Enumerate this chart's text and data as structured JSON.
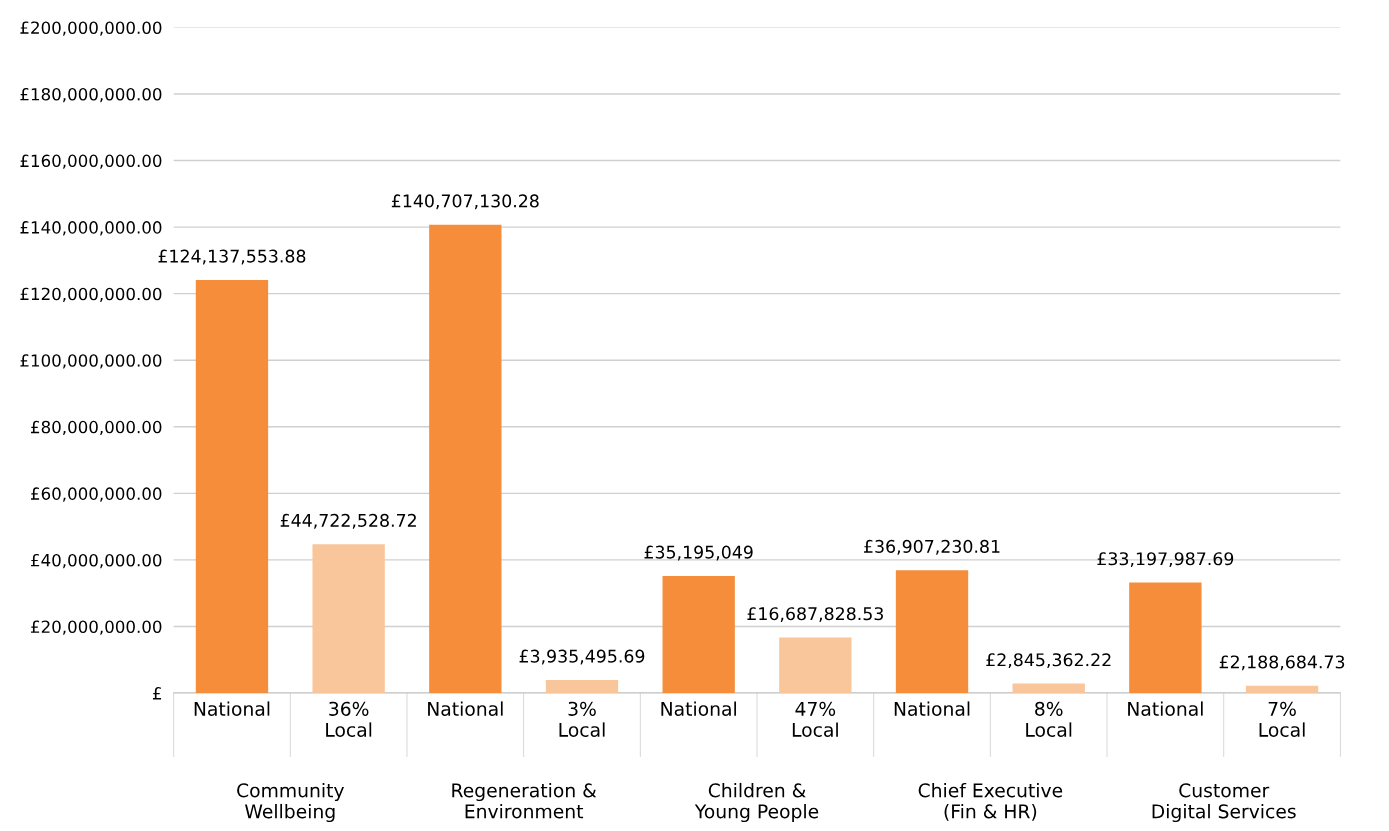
{
  "chart_data": {
    "type": "bar",
    "categories": [
      "National",
      "36%\nLocal",
      "National",
      "3%\nLocal",
      "National",
      "47%\nLocal",
      "National",
      "8%\nLocal",
      "National",
      "7%\nLocal"
    ],
    "values": [
      124137553.88,
      44722528.72,
      140707130.28,
      3935495.69,
      35195049,
      16687828.53,
      36907230.81,
      2845362.22,
      33197987.69,
      2188684.73
    ],
    "colors": [
      "#f58d3a",
      "#f9c59b",
      "#f58d3a",
      "#f9c59b",
      "#f58d3a",
      "#f9c59b",
      "#f58d3a",
      "#f9c59b",
      "#f58d3a",
      "#f9c59b"
    ],
    "value_labels": [
      "£124,137,553.88",
      "£44,722,528.72",
      "£140,707,130.28",
      "£3,935,495.69",
      "£35,195,049",
      "£16,687,828.53",
      "£36,907,230.81",
      "£2,845,362.22",
      "£33,197,987.69",
      "£2,188,684.73"
    ],
    "ylim": [
      0,
      200000000
    ],
    "yticks": [
      {
        "value": 0,
        "label": "£"
      },
      {
        "value": 20000000,
        "label": "£20,000,000.00"
      },
      {
        "value": 40000000,
        "label": "£40,000,000.00"
      },
      {
        "value": 60000000,
        "label": "£60,000,000.00"
      },
      {
        "value": 80000000,
        "label": "£80,000,000.00"
      },
      {
        "value": 100000000,
        "label": "£100,000,000.00"
      },
      {
        "value": 120000000,
        "label": "£120,000,000.00"
      },
      {
        "value": 140000000,
        "label": "£140,000,000.00"
      },
      {
        "value": 160000000,
        "label": "£160,000,000.00"
      },
      {
        "value": 180000000,
        "label": "£180,000,000.00"
      },
      {
        "value": 200000000,
        "label": "£200,000,000.00"
      }
    ],
    "grid": "y",
    "legend": false,
    "annotations": [
      "Community\nWellbeing",
      "Regeneration &\nEnvironment",
      "Children &\nYoung People",
      "Chief Executive\n(Fin & HR)",
      "Customer\nDigital Services"
    ]
  }
}
